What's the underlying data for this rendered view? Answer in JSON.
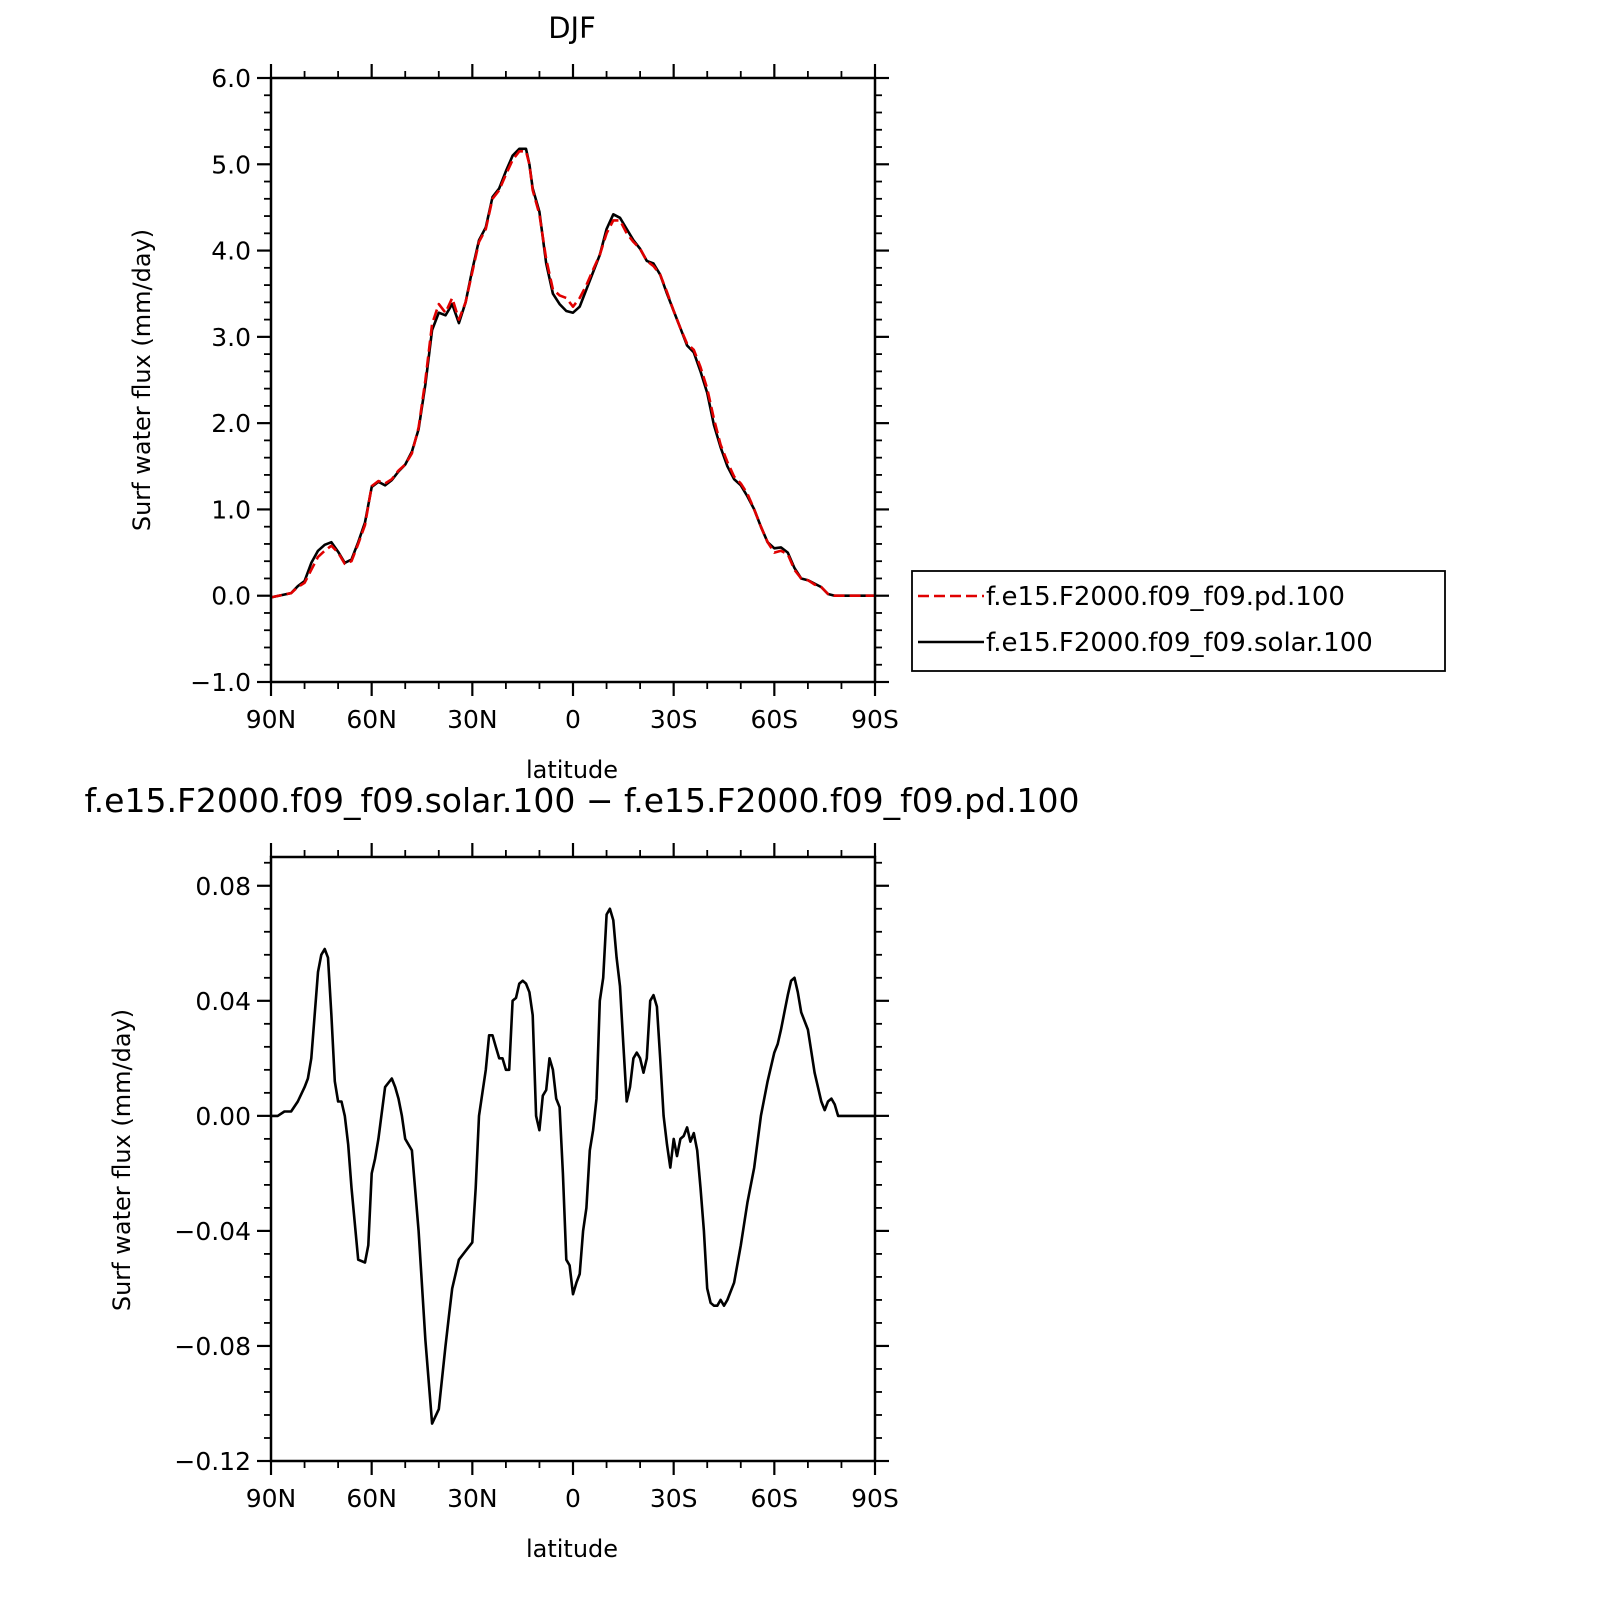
{
  "chart_data": [
    {
      "type": "line",
      "title": "DJF",
      "xlabel": "latitude",
      "ylabel": "Surf water flux (mm/day)",
      "xlim": [
        90,
        -90
      ],
      "ylim": [
        -1.0,
        6.0
      ],
      "x_ticks": [
        90,
        60,
        30,
        0,
        -30,
        -60,
        -90
      ],
      "x_tick_labels": [
        "90N",
        "60N",
        "30N",
        "0",
        "30S",
        "60S",
        "90S"
      ],
      "y_ticks": [
        -1.0,
        0.0,
        1.0,
        2.0,
        3.0,
        4.0,
        5.0,
        6.0
      ],
      "y_tick_labels": [
        "−1.0",
        "0.0",
        "1.0",
        "2.0",
        "3.0",
        "4.0",
        "5.0",
        "6.0"
      ],
      "legend_position": "right",
      "series": [
        {
          "name": "f.e15.F2000.f09_f09.pd.100",
          "color": "#e00000",
          "dash": "dashed",
          "x": [
            90,
            84,
            82,
            80,
            78,
            76,
            74,
            72,
            70,
            68,
            66,
            64,
            62,
            60,
            58,
            56,
            54,
            52,
            50,
            48,
            46,
            44,
            42,
            40,
            38,
            36,
            34,
            32,
            30,
            28,
            26,
            24,
            22,
            20,
            18,
            16,
            14,
            13,
            12,
            10,
            8,
            6,
            4,
            2,
            0,
            -2,
            -4,
            -6,
            -8,
            -10,
            -12,
            -14,
            -16,
            -18,
            -20,
            -22,
            -24,
            -26,
            -28,
            -30,
            -32,
            -34,
            -36,
            -38,
            -40,
            -42,
            -44,
            -46,
            -48,
            -50,
            -52,
            -54,
            -56,
            -58,
            -60,
            -62,
            -64,
            -66,
            -68,
            -70,
            -72,
            -74,
            -76,
            -78,
            -80,
            -82,
            -90
          ],
          "y": [
            -0.02,
            0.03,
            0.1,
            0.15,
            0.3,
            0.45,
            0.52,
            0.58,
            0.5,
            0.37,
            0.4,
            0.6,
            0.82,
            1.27,
            1.33,
            1.3,
            1.35,
            1.45,
            1.52,
            1.65,
            1.95,
            2.5,
            3.15,
            3.38,
            3.28,
            3.45,
            3.2,
            3.4,
            3.75,
            4.1,
            4.25,
            4.6,
            4.7,
            4.88,
            5.05,
            5.15,
            5.15,
            5.0,
            4.7,
            4.42,
            3.9,
            3.55,
            3.48,
            3.45,
            3.35,
            3.45,
            3.6,
            3.78,
            3.95,
            4.2,
            4.35,
            4.35,
            4.2,
            4.1,
            4.02,
            3.88,
            3.82,
            3.72,
            3.52,
            3.3,
            3.1,
            2.92,
            2.85,
            2.65,
            2.4,
            2.05,
            1.75,
            1.55,
            1.38,
            1.3,
            1.18,
            1.0,
            0.8,
            0.62,
            0.5,
            0.52,
            0.48,
            0.3,
            0.2,
            0.18,
            0.13,
            0.1,
            0.02,
            0.0,
            0.0,
            0.0,
            0.0
          ]
        },
        {
          "name": "f.e15.F2000.f09_f09.solar.100",
          "color": "#000000",
          "dash": "solid",
          "x": [
            90,
            84,
            82,
            80,
            78,
            76,
            74,
            72,
            70,
            68,
            66,
            64,
            62,
            60,
            58,
            56,
            54,
            52,
            50,
            48,
            46,
            44,
            42,
            40,
            38,
            36,
            34,
            32,
            30,
            28,
            26,
            24,
            22,
            20,
            18,
            16,
            14,
            13,
            12,
            10,
            8,
            6,
            4,
            2,
            0,
            -2,
            -4,
            -6,
            -8,
            -10,
            -12,
            -14,
            -16,
            -18,
            -20,
            -22,
            -24,
            -26,
            -28,
            -30,
            -32,
            -34,
            -36,
            -38,
            -40,
            -42,
            -44,
            -46,
            -48,
            -50,
            -52,
            -54,
            -56,
            -58,
            -60,
            -62,
            -64,
            -66,
            -68,
            -70,
            -72,
            -74,
            -76,
            -78,
            -80,
            -82,
            -90
          ],
          "y": [
            -0.02,
            0.03,
            0.11,
            0.17,
            0.38,
            0.52,
            0.59,
            0.62,
            0.51,
            0.38,
            0.42,
            0.62,
            0.85,
            1.26,
            1.32,
            1.28,
            1.34,
            1.44,
            1.52,
            1.67,
            1.93,
            2.45,
            3.08,
            3.28,
            3.25,
            3.38,
            3.16,
            3.4,
            3.78,
            4.12,
            4.27,
            4.62,
            4.72,
            4.92,
            5.1,
            5.18,
            5.18,
            5.0,
            4.72,
            4.45,
            3.85,
            3.5,
            3.38,
            3.3,
            3.28,
            3.35,
            3.55,
            3.75,
            3.95,
            4.25,
            4.42,
            4.38,
            4.25,
            4.12,
            4.02,
            3.88,
            3.85,
            3.72,
            3.5,
            3.3,
            3.1,
            2.9,
            2.82,
            2.6,
            2.35,
            1.98,
            1.72,
            1.5,
            1.35,
            1.28,
            1.15,
            1.0,
            0.8,
            0.62,
            0.55,
            0.56,
            0.5,
            0.32,
            0.2,
            0.18,
            0.14,
            0.1,
            0.02,
            0.0,
            0.0,
            0.0,
            0.0
          ]
        }
      ]
    },
    {
      "type": "line",
      "title": "f.e15.F2000.f09_f09.solar.100 − f.e15.F2000.f09_f09.pd.100",
      "xlabel": "latitude",
      "ylabel": "Surf water flux (mm/day)",
      "xlim": [
        90,
        -90
      ],
      "ylim": [
        -0.12,
        0.09
      ],
      "x_ticks": [
        90,
        60,
        30,
        0,
        -30,
        -60,
        -90
      ],
      "x_tick_labels": [
        "90N",
        "60N",
        "30N",
        "0",
        "30S",
        "60S",
        "90S"
      ],
      "y_ticks": [
        -0.12,
        -0.08,
        -0.04,
        0.0,
        0.04,
        0.08
      ],
      "y_tick_labels": [
        "−0.12",
        "−0.08",
        "−0.04",
        "0.00",
        "0.04",
        "0.08"
      ],
      "series": [
        {
          "color": "#000000",
          "x": [
            90,
            88,
            86,
            84,
            82,
            80,
            79,
            78,
            76,
            75,
            74,
            73,
            72,
            71,
            70,
            69,
            68,
            67,
            66,
            64,
            62,
            61,
            60,
            59,
            58,
            56,
            54,
            53,
            52,
            51,
            50,
            48,
            46,
            44,
            42,
            40,
            38,
            37,
            36,
            34,
            32,
            30,
            29,
            28,
            27,
            26,
            25,
            24,
            23,
            22,
            21,
            20,
            19,
            18,
            17,
            16,
            15,
            14,
            13,
            12,
            11,
            10,
            9,
            8,
            7,
            6,
            5,
            4,
            3,
            2,
            1,
            0,
            -1,
            -2,
            -3,
            -4,
            -5,
            -6,
            -7,
            -8,
            -9,
            -10,
            -11,
            -12,
            -13,
            -14,
            -15,
            -16,
            -17,
            -18,
            -19,
            -20,
            -21,
            -22,
            -23,
            -24,
            -25,
            -26,
            -27,
            -28,
            -29,
            -30,
            -31,
            -32,
            -33,
            -34,
            -35,
            -36,
            -37,
            -38,
            -39,
            -40,
            -41,
            -42,
            -43,
            -44,
            -45,
            -46,
            -48,
            -50,
            -52,
            -54,
            -56,
            -58,
            -60,
            -61,
            -62,
            -63,
            -64,
            -65,
            -66,
            -67,
            -68,
            -70,
            -72,
            -74,
            -75,
            -76,
            -77,
            -78,
            -79,
            -80,
            -82,
            -85,
            -90
          ],
          "y": [
            0.0,
            0.0,
            0.0015,
            0.0015,
            0.005,
            0.01,
            0.013,
            0.02,
            0.05,
            0.056,
            0.058,
            0.055,
            0.035,
            0.012,
            0.005,
            0.005,
            0.0,
            -0.01,
            -0.025,
            -0.05,
            -0.051,
            -0.045,
            -0.02,
            -0.015,
            -0.008,
            0.01,
            0.013,
            0.01,
            0.006,
            0.0,
            -0.008,
            -0.012,
            -0.04,
            -0.078,
            -0.107,
            -0.102,
            -0.08,
            -0.07,
            -0.06,
            -0.05,
            -0.047,
            -0.044,
            -0.025,
            0.0,
            0.008,
            0.016,
            0.028,
            0.028,
            0.024,
            0.02,
            0.02,
            0.016,
            0.016,
            0.04,
            0.041,
            0.046,
            0.047,
            0.046,
            0.043,
            0.035,
            0.0,
            -0.005,
            0.007,
            0.009,
            0.02,
            0.016,
            0.006,
            0.003,
            -0.02,
            -0.05,
            -0.052,
            -0.062,
            -0.058,
            -0.055,
            -0.04,
            -0.032,
            -0.012,
            -0.005,
            0.006,
            0.04,
            0.048,
            0.07,
            0.072,
            0.068,
            0.055,
            0.045,
            0.025,
            0.005,
            0.01,
            0.02,
            0.022,
            0.02,
            0.015,
            0.02,
            0.04,
            0.042,
            0.038,
            0.02,
            0.0,
            -0.01,
            -0.018,
            -0.008,
            -0.014,
            -0.008,
            -0.007,
            -0.004,
            -0.009,
            -0.006,
            -0.012,
            -0.025,
            -0.04,
            -0.06,
            -0.065,
            -0.066,
            -0.066,
            -0.064,
            -0.066,
            -0.064,
            -0.058,
            -0.045,
            -0.03,
            -0.018,
            0.0,
            0.012,
            0.022,
            0.025,
            0.03,
            0.036,
            0.042,
            0.047,
            0.048,
            0.043,
            0.036,
            0.03,
            0.015,
            0.005,
            0.002,
            0.005,
            0.006,
            0.004,
            0.0,
            0.0,
            0.0,
            0.0,
            0.0
          ]
        }
      ]
    }
  ]
}
